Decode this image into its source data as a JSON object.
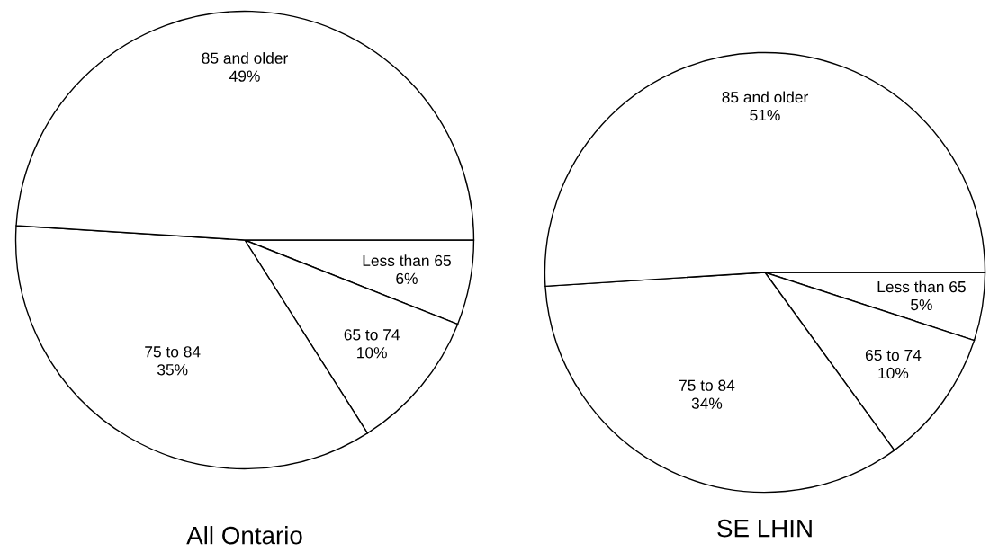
{
  "chart_data": [
    {
      "type": "pie",
      "title": "All Ontario",
      "categories": [
        "Less than 65",
        "65 to 74",
        "75 to 84",
        "85 and older"
      ],
      "values": [
        6,
        10,
        35,
        49
      ],
      "value_labels": [
        "6%",
        "10%",
        "35%",
        "49%"
      ],
      "colors": [
        "#ffffff",
        "#ffffff",
        "#ffffff",
        "#ffffff"
      ]
    },
    {
      "type": "pie",
      "title": "SE LHIN",
      "categories": [
        "Less than 65",
        "65 to 74",
        "75 to 84",
        "85 and older"
      ],
      "values": [
        5,
        10,
        34,
        51
      ],
      "value_labels": [
        "5%",
        "10%",
        "34%",
        "51%"
      ],
      "colors": [
        "#ffffff",
        "#ffffff",
        "#ffffff",
        "#ffffff"
      ]
    }
  ]
}
